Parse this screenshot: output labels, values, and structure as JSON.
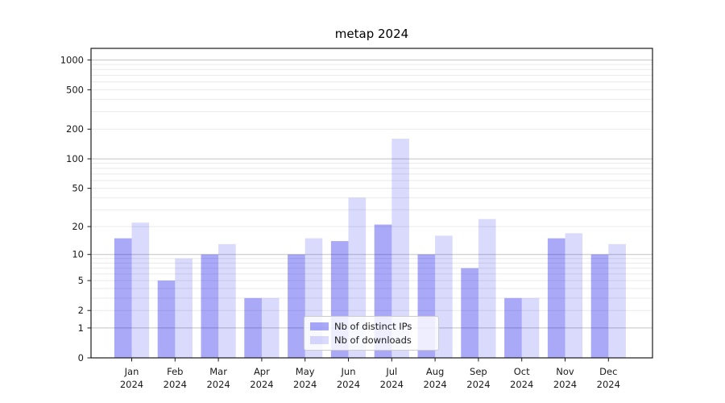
{
  "chart_data": {
    "type": "bar",
    "title": "metap 2024",
    "categories": [
      {
        "month": "Jan",
        "year": "2024"
      },
      {
        "month": "Feb",
        "year": "2024"
      },
      {
        "month": "Mar",
        "year": "2024"
      },
      {
        "month": "Apr",
        "year": "2024"
      },
      {
        "month": "May",
        "year": "2024"
      },
      {
        "month": "Jun",
        "year": "2024"
      },
      {
        "month": "Jul",
        "year": "2024"
      },
      {
        "month": "Aug",
        "year": "2024"
      },
      {
        "month": "Sep",
        "year": "2024"
      },
      {
        "month": "Oct",
        "year": "2024"
      },
      {
        "month": "Nov",
        "year": "2024"
      },
      {
        "month": "Dec",
        "year": "2024"
      }
    ],
    "series": [
      {
        "name": "Nb of distinct IPs",
        "color": "rgba(10,10,235,0.35)",
        "values": [
          15,
          5,
          10,
          3,
          10,
          14,
          21,
          10,
          7,
          3,
          15,
          10
        ]
      },
      {
        "name": "Nb of downloads",
        "color": "rgba(10,10,235,0.15)",
        "values": [
          22,
          9,
          13,
          3,
          15,
          40,
          160,
          16,
          24,
          3,
          17,
          13
        ]
      }
    ],
    "y_ticks": [
      0,
      1,
      2,
      5,
      10,
      20,
      50,
      100,
      200,
      500,
      1000
    ],
    "y_scale": "log10(1+v)",
    "ylim": [
      0,
      1330
    ],
    "grid": true,
    "legend_position": "lower center",
    "colors": {
      "major_grid": "#c3c3c3",
      "minor_grid": "#eaeaea",
      "axis": "#1a1a1a",
      "text": "#1a1a1a"
    }
  }
}
